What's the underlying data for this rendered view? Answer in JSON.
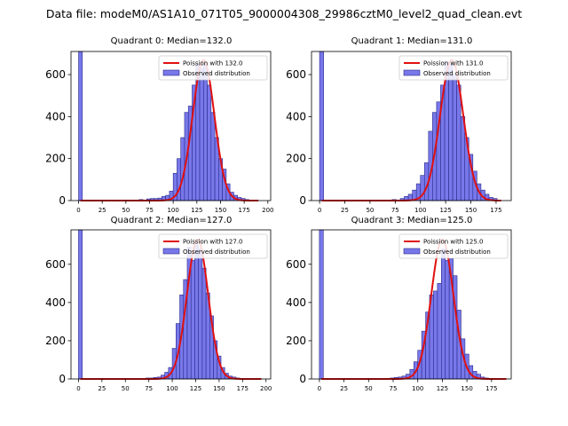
{
  "figure": {
    "suptitle": "Data file: modeM0/AS1A10_071T05_9000004308_29986cztM0_level2_quad_clean.evt"
  },
  "colors": {
    "bar_fill": "#7878ea",
    "bar_edge": "#2b2b8c",
    "fit_line": "#e01010",
    "axes": "#000000"
  },
  "chart_data": [
    {
      "type": "bar",
      "title": "Quadrant 0: Median=132.0",
      "median": 132.0,
      "xlim": [
        -8,
        203
      ],
      "ylim": [
        0,
        710
      ],
      "xticks": [
        0,
        25,
        50,
        75,
        100,
        125,
        150,
        175,
        200
      ],
      "yticks": [
        0,
        200,
        400,
        600
      ],
      "bin_width": 4,
      "bins": [
        0,
        64,
        68,
        72,
        76,
        80,
        84,
        88,
        92,
        96,
        100,
        104,
        108,
        112,
        116,
        120,
        124,
        128,
        132,
        136,
        140,
        144,
        148,
        152,
        156,
        160,
        164,
        168,
        172,
        176
      ],
      "values": [
        710,
        5,
        3,
        8,
        10,
        10,
        12,
        20,
        25,
        45,
        130,
        200,
        300,
        420,
        450,
        550,
        650,
        630,
        650,
        550,
        420,
        300,
        200,
        150,
        80,
        40,
        25,
        15,
        10,
        5
      ],
      "fit": {
        "label": "Poission with 132.0",
        "mean": 132.0,
        "peak": 670,
        "sigma": 11.5,
        "x_range": [
          2,
          190
        ]
      },
      "legend": {
        "line": "Poission with 132.0",
        "bar": "Observed distribution",
        "position": "top-right"
      }
    },
    {
      "type": "bar",
      "title": "Quadrant 1: Median=131.0",
      "median": 131.0,
      "xlim": [
        -8,
        190
      ],
      "ylim": [
        0,
        710
      ],
      "xticks": [
        0,
        25,
        50,
        75,
        100,
        125,
        150,
        175
      ],
      "yticks": [
        0,
        200,
        400,
        600
      ],
      "bin_width": 4,
      "bins": [
        0,
        72,
        80,
        84,
        88,
        92,
        96,
        100,
        104,
        108,
        112,
        116,
        120,
        124,
        128,
        132,
        136,
        140,
        144,
        148,
        152,
        156,
        160,
        164,
        168,
        172
      ],
      "values": [
        710,
        5,
        10,
        20,
        30,
        50,
        80,
        120,
        180,
        330,
        420,
        470,
        550,
        660,
        650,
        600,
        550,
        400,
        300,
        220,
        140,
        80,
        50,
        30,
        15,
        10
      ],
      "fit": {
        "label": "Poission with 131.0",
        "mean": 131.0,
        "peak": 670,
        "sigma": 11.5,
        "x_range": [
          2,
          180
        ]
      },
      "legend": {
        "line": "Poission with 131.0",
        "bar": "Observed distribution",
        "position": "top-right"
      }
    },
    {
      "type": "bar",
      "title": "Quadrant 2: Median=127.0",
      "median": 127.0,
      "xlim": [
        -8,
        205
      ],
      "ylim": [
        0,
        780
      ],
      "xticks": [
        0,
        25,
        50,
        75,
        100,
        125,
        150,
        175,
        200
      ],
      "yticks": [
        0,
        200,
        400,
        600
      ],
      "bin_width": 4,
      "bins": [
        0,
        68,
        72,
        76,
        80,
        84,
        88,
        92,
        96,
        100,
        104,
        108,
        112,
        116,
        120,
        124,
        128,
        132,
        136,
        140,
        144,
        148,
        152,
        156,
        160,
        164,
        168
      ],
      "values": [
        780,
        3,
        5,
        5,
        8,
        10,
        20,
        35,
        60,
        160,
        290,
        440,
        520,
        690,
        620,
        700,
        680,
        580,
        450,
        330,
        200,
        120,
        60,
        30,
        15,
        10,
        5
      ],
      "fit": {
        "label": "Poission with 127.0",
        "mean": 127.0,
        "peak": 730,
        "sigma": 11.3,
        "x_range": [
          2,
          195
        ]
      },
      "legend": {
        "line": "Poission with 127.0",
        "bar": "Observed distribution",
        "position": "top-right"
      }
    },
    {
      "type": "bar",
      "title": "Quadrant 3: Median=125.0",
      "median": 125.0,
      "xlim": [
        -8,
        195
      ],
      "ylim": [
        0,
        780
      ],
      "xticks": [
        0,
        25,
        50,
        75,
        100,
        125,
        150,
        175
      ],
      "yticks": [
        0,
        200,
        400,
        600
      ],
      "bin_width": 4,
      "bins": [
        0,
        72,
        76,
        80,
        84,
        88,
        92,
        96,
        100,
        104,
        108,
        112,
        116,
        120,
        124,
        128,
        132,
        136,
        140,
        144,
        148,
        152,
        156,
        160,
        164,
        168
      ],
      "values": [
        780,
        5,
        8,
        10,
        15,
        25,
        50,
        90,
        150,
        250,
        350,
        440,
        460,
        500,
        680,
        620,
        630,
        540,
        360,
        210,
        130,
        70,
        40,
        25,
        10,
        5
      ],
      "fit": {
        "label": "Poission with 125.0",
        "mean": 125.0,
        "peak": 730,
        "sigma": 11.2,
        "x_range": [
          2,
          190
        ]
      },
      "legend": {
        "line": "Poission with 125.0",
        "bar": "Observed distribution",
        "position": "top-right"
      }
    }
  ]
}
